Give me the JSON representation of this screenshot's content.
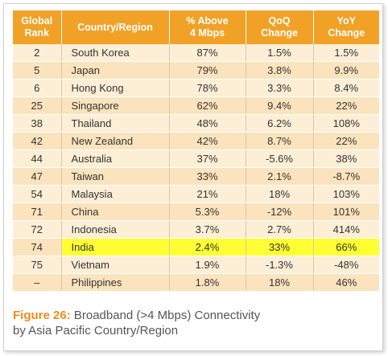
{
  "table": {
    "headers": {
      "rank": [
        "Global",
        "Rank"
      ],
      "country": [
        "Country/Region"
      ],
      "above": [
        "% Above",
        "4 Mbps"
      ],
      "qoq": [
        "QoQ",
        "Change"
      ],
      "yoy": [
        "YoY",
        "Change"
      ]
    },
    "rows": [
      {
        "rank": "2",
        "country": "South Korea",
        "above": "87%",
        "qoq": "1.5%",
        "yoy": "1.5%"
      },
      {
        "rank": "5",
        "country": "Japan",
        "above": "79%",
        "qoq": "3.8%",
        "yoy": "9.9%"
      },
      {
        "rank": "6",
        "country": "Hong Kong",
        "above": "78%",
        "qoq": "3.3%",
        "yoy": "8.4%"
      },
      {
        "rank": "25",
        "country": "Singapore",
        "above": "62%",
        "qoq": "9.4%",
        "yoy": "22%"
      },
      {
        "rank": "38",
        "country": "Thailand",
        "above": "48%",
        "qoq": "6.2%",
        "yoy": "108%"
      },
      {
        "rank": "42",
        "country": "New Zealand",
        "above": "42%",
        "qoq": "8.7%",
        "yoy": "22%"
      },
      {
        "rank": "44",
        "country": "Australia",
        "above": "37%",
        "qoq": "-5.6%",
        "yoy": "38%"
      },
      {
        "rank": "47",
        "country": "Taiwan",
        "above": "33%",
        "qoq": "2.1%",
        "yoy": "-8.7%"
      },
      {
        "rank": "54",
        "country": "Malaysia",
        "above": "21%",
        "qoq": "18%",
        "yoy": "103%"
      },
      {
        "rank": "71",
        "country": "China",
        "above": "5.3%",
        "qoq": "-12%",
        "yoy": "101%"
      },
      {
        "rank": "72",
        "country": "Indonesia",
        "above": "3.7%",
        "qoq": "2.7%",
        "yoy": "414%"
      },
      {
        "rank": "74",
        "country": "India",
        "above": "2.4%",
        "qoq": "33%",
        "yoy": "66%",
        "highlight": true
      },
      {
        "rank": "75",
        "country": "Vietnam",
        "above": "1.9%",
        "qoq": "-1.3%",
        "yoy": "-48%"
      },
      {
        "rank": "–",
        "country": "Philippines",
        "above": "1.8%",
        "qoq": "18%",
        "yoy": "46%"
      }
    ]
  },
  "caption": {
    "figure": "Figure 26:",
    "line1": " Broadband (>4 Mbps) Connectivity",
    "line2": "by Asia Pacific Country/Region"
  },
  "colors": {
    "header_bg": "#f2a127",
    "row_light": "#fdeed6",
    "row_dark": "#fbe3bd",
    "highlight": "#ffff33",
    "figure_label": "#f08a1c"
  }
}
